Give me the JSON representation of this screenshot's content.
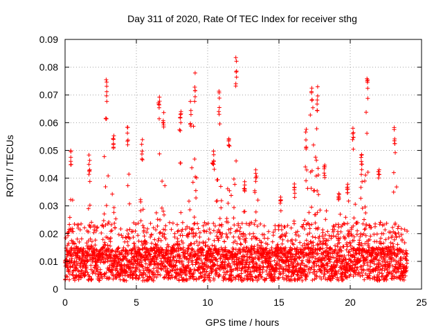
{
  "chart_data": {
    "type": "scatter",
    "title": "Day 311 of 2020, Rate Of TEC Index for receiver sthg",
    "xlabel": "GPS time / hours",
    "ylabel": "ROTI / TECUs",
    "xlim": [
      0,
      25
    ],
    "ylim": [
      0,
      0.09
    ],
    "xticks": [
      0,
      5,
      10,
      15,
      20,
      25
    ],
    "xtick_labels": [
      "0",
      "5",
      "10",
      "15",
      "20",
      "25"
    ],
    "yticks": [
      0,
      0.01,
      0.02,
      0.03,
      0.04,
      0.05,
      0.06,
      0.07,
      0.08,
      0.09
    ],
    "ytick_labels": [
      "0",
      "0.01",
      "0.02",
      "0.03",
      "0.04",
      "0.05",
      "0.06",
      "0.07",
      "0.08",
      "0.09"
    ],
    "grid": true,
    "marker": "plus",
    "color": "#ff0000",
    "data_range_x": [
      0,
      24
    ],
    "baseline_range": [
      0.003,
      0.015
    ],
    "peaks": [
      {
        "t": 0.4,
        "max": 0.051
      },
      {
        "t": 1.7,
        "max": 0.049
      },
      {
        "t": 2.9,
        "max": 0.076
      },
      {
        "t": 3.4,
        "max": 0.057
      },
      {
        "t": 4.4,
        "max": 0.06
      },
      {
        "t": 5.4,
        "max": 0.054
      },
      {
        "t": 6.6,
        "max": 0.071
      },
      {
        "t": 6.9,
        "max": 0.065
      },
      {
        "t": 8.1,
        "max": 0.066
      },
      {
        "t": 8.8,
        "max": 0.068
      },
      {
        "t": 9.1,
        "max": 0.078
      },
      {
        "t": 10.4,
        "max": 0.05
      },
      {
        "t": 10.8,
        "max": 0.073
      },
      {
        "t": 11.5,
        "max": 0.058
      },
      {
        "t": 12.0,
        "max": 0.084
      },
      {
        "t": 12.6,
        "max": 0.04
      },
      {
        "t": 13.4,
        "max": 0.045
      },
      {
        "t": 15.1,
        "max": 0.035
      },
      {
        "t": 16.1,
        "max": 0.038
      },
      {
        "t": 16.9,
        "max": 0.058
      },
      {
        "t": 17.3,
        "max": 0.077
      },
      {
        "t": 17.7,
        "max": 0.074
      },
      {
        "t": 18.2,
        "max": 0.045
      },
      {
        "t": 19.2,
        "max": 0.035
      },
      {
        "t": 19.8,
        "max": 0.04
      },
      {
        "t": 20.2,
        "max": 0.058
      },
      {
        "t": 20.8,
        "max": 0.05
      },
      {
        "t": 21.2,
        "max": 0.077
      },
      {
        "t": 22.0,
        "max": 0.045
      },
      {
        "t": 23.1,
        "max": 0.059
      }
    ]
  }
}
